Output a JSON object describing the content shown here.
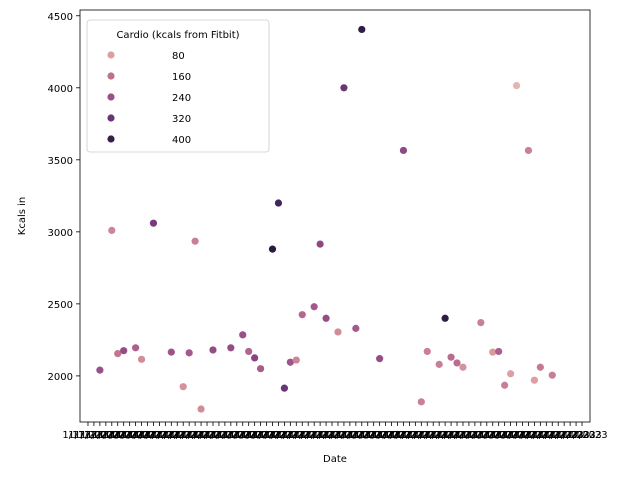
{
  "chart_data": {
    "type": "scatter",
    "xlabel": "Date",
    "ylabel": "Kcals in",
    "ylim": [
      1680,
      4540
    ],
    "yticks": [
      2000,
      2500,
      3000,
      3500,
      4000,
      4500
    ],
    "grid": false,
    "x_tick_count": 84,
    "x_tick_text": "1/17/2023",
    "legend": {
      "title": "Cardio (kcals from Fitbit)",
      "placement": "top-left",
      "entries": [
        {
          "label": "80",
          "value": 80
        },
        {
          "label": "160",
          "value": 160
        },
        {
          "label": "240",
          "value": 240
        },
        {
          "label": "320",
          "value": 320
        },
        {
          "label": "400",
          "value": 400
        }
      ]
    },
    "color_scale": {
      "min": 0,
      "max": 440,
      "stops": [
        "#f3dad2",
        "#dfa3a4",
        "#c37590",
        "#a5588b",
        "#7b3c7f",
        "#4a2a63",
        "#1e1232"
      ]
    },
    "points": [
      {
        "i": 2,
        "y": 2040,
        "c": 240
      },
      {
        "i": 4,
        "y": 3010,
        "c": 120
      },
      {
        "i": 5,
        "y": 2155,
        "c": 150
      },
      {
        "i": 6,
        "y": 2175,
        "c": 250
      },
      {
        "i": 8,
        "y": 2195,
        "c": 200
      },
      {
        "i": 9,
        "y": 2115,
        "c": 110
      },
      {
        "i": 11,
        "y": 3060,
        "c": 300
      },
      {
        "i": 14,
        "y": 2165,
        "c": 230
      },
      {
        "i": 16,
        "y": 1925,
        "c": 100
      },
      {
        "i": 17,
        "y": 2160,
        "c": 220
      },
      {
        "i": 18,
        "y": 2935,
        "c": 130
      },
      {
        "i": 19,
        "y": 1770,
        "c": 110
      },
      {
        "i": 21,
        "y": 2180,
        "c": 250
      },
      {
        "i": 24,
        "y": 2195,
        "c": 250
      },
      {
        "i": 26,
        "y": 2285,
        "c": 240
      },
      {
        "i": 27,
        "y": 2170,
        "c": 190
      },
      {
        "i": 28,
        "y": 2125,
        "c": 270
      },
      {
        "i": 29,
        "y": 2050,
        "c": 210
      },
      {
        "i": 31,
        "y": 2880,
        "c": 420
      },
      {
        "i": 32,
        "y": 3200,
        "c": 380
      },
      {
        "i": 33,
        "y": 1915,
        "c": 320
      },
      {
        "i": 34,
        "y": 2095,
        "c": 230
      },
      {
        "i": 35,
        "y": 2110,
        "c": 120
      },
      {
        "i": 36,
        "y": 2425,
        "c": 180
      },
      {
        "i": 38,
        "y": 2480,
        "c": 220
      },
      {
        "i": 39,
        "y": 2915,
        "c": 260
      },
      {
        "i": 40,
        "y": 2400,
        "c": 250
      },
      {
        "i": 42,
        "y": 2305,
        "c": 110
      },
      {
        "i": 43,
        "y": 4000,
        "c": 320
      },
      {
        "i": 45,
        "y": 2330,
        "c": 220
      },
      {
        "i": 46,
        "y": 4405,
        "c": 410
      },
      {
        "i": 49,
        "y": 2120,
        "c": 250
      },
      {
        "i": 53,
        "y": 3565,
        "c": 260
      },
      {
        "i": 56,
        "y": 1820,
        "c": 130
      },
      {
        "i": 57,
        "y": 2170,
        "c": 130
      },
      {
        "i": 59,
        "y": 2080,
        "c": 130
      },
      {
        "i": 60,
        "y": 2400,
        "c": 410
      },
      {
        "i": 61,
        "y": 2130,
        "c": 170
      },
      {
        "i": 62,
        "y": 2090,
        "c": 170
      },
      {
        "i": 63,
        "y": 2060,
        "c": 100
      },
      {
        "i": 66,
        "y": 2370,
        "c": 130
      },
      {
        "i": 68,
        "y": 2165,
        "c": 90
      },
      {
        "i": 69,
        "y": 2170,
        "c": 200
      },
      {
        "i": 70,
        "y": 1935,
        "c": 130
      },
      {
        "i": 71,
        "y": 2015,
        "c": 80
      },
      {
        "i": 72,
        "y": 4015,
        "c": 50
      },
      {
        "i": 74,
        "y": 3565,
        "c": 130
      },
      {
        "i": 75,
        "y": 1970,
        "c": 80
      },
      {
        "i": 76,
        "y": 2060,
        "c": 140
      },
      {
        "i": 78,
        "y": 2005,
        "c": 130
      }
    ]
  }
}
